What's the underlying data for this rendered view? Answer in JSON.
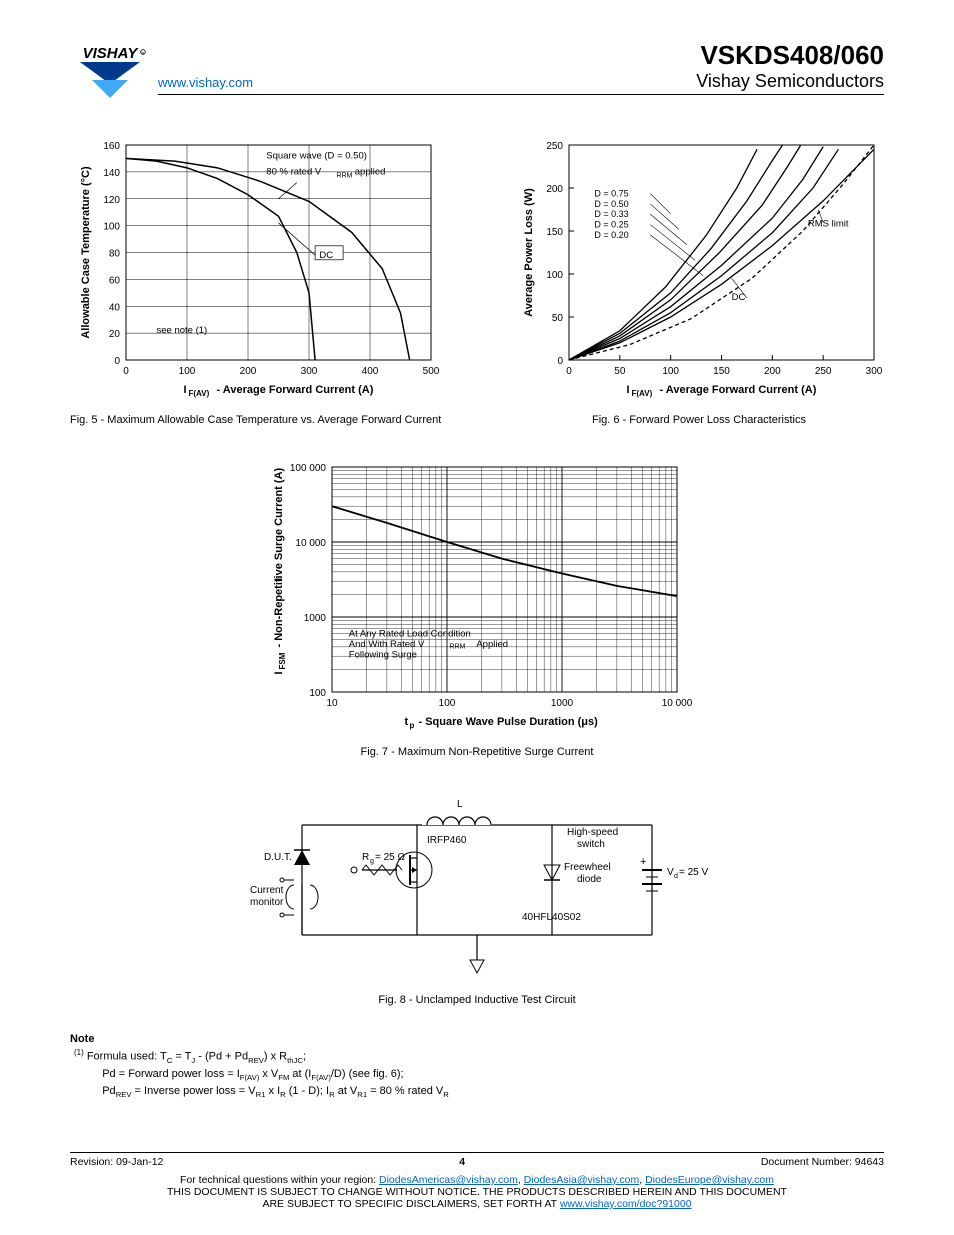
{
  "header": {
    "url": "www.vishay.com",
    "part_number": "VSKDS408/060",
    "subtitle": "Vishay Semiconductors",
    "logo_text": "VISHAY",
    "logo_color_top": "#003a8c",
    "logo_color_bottom": "#3fa9f5"
  },
  "fig5": {
    "type": "line",
    "caption": "Fig. 5 - Maximum Allowable Case Temperature vs. Average Forward Current",
    "ylabel": "Allowable Case Temperature (°C)",
    "xlabel": "I_F(AV) - Average Forward Current (A)",
    "xlim": [
      0,
      500
    ],
    "ylim": [
      0,
      160
    ],
    "xticks": [
      0,
      100,
      200,
      300,
      400,
      500
    ],
    "yticks": [
      0,
      20,
      40,
      60,
      80,
      100,
      120,
      140,
      160
    ],
    "background_color": "#ffffff",
    "grid_color": "#000000",
    "line_color": "#000000",
    "annotations": {
      "square_wave": "Square wave (D = 0.50)",
      "vrrm": "80 % rated V_RRM applied",
      "dc": "DC",
      "note": "see note (1)"
    },
    "curves": [
      {
        "name": "DC",
        "points": [
          [
            0,
            150
          ],
          [
            50,
            148
          ],
          [
            100,
            143
          ],
          [
            150,
            135
          ],
          [
            200,
            123
          ],
          [
            250,
            107
          ],
          [
            280,
            80
          ],
          [
            300,
            50
          ],
          [
            310,
            0
          ]
        ]
      },
      {
        "name": "D050",
        "points": [
          [
            0,
            150
          ],
          [
            80,
            148
          ],
          [
            150,
            143
          ],
          [
            220,
            133
          ],
          [
            300,
            118
          ],
          [
            370,
            95
          ],
          [
            420,
            68
          ],
          [
            450,
            35
          ],
          [
            465,
            0
          ]
        ]
      }
    ]
  },
  "fig6": {
    "type": "line",
    "caption": "Fig. 6 - Forward Power Loss Characteristics",
    "ylabel": "Average Power Loss (W)",
    "xlabel": "I_F(AV) - Average Forward Current (A)",
    "xlim": [
      0,
      300
    ],
    "ylim": [
      0,
      250
    ],
    "xticks": [
      0,
      50,
      100,
      150,
      200,
      250,
      300
    ],
    "yticks": [
      0,
      50,
      100,
      150,
      200,
      250
    ],
    "background_color": "#ffffff",
    "grid_color": "#000000",
    "line_color": "#000000",
    "legend_labels": [
      "D = 0.75",
      "D = 0.50",
      "D = 0.33",
      "D = 0.25",
      "D = 0.20"
    ],
    "dc_label": "DC",
    "rms_label": "RMS limit",
    "curves": [
      {
        "name": "DC",
        "points": [
          [
            0,
            0
          ],
          [
            50,
            20
          ],
          [
            100,
            50
          ],
          [
            150,
            88
          ],
          [
            200,
            133
          ],
          [
            250,
            185
          ],
          [
            300,
            245
          ]
        ]
      },
      {
        "name": "D075",
        "points": [
          [
            0,
            0
          ],
          [
            50,
            22
          ],
          [
            100,
            55
          ],
          [
            150,
            98
          ],
          [
            200,
            148
          ],
          [
            240,
            200
          ],
          [
            265,
            245
          ]
        ]
      },
      {
        "name": "D050",
        "points": [
          [
            0,
            0
          ],
          [
            50,
            25
          ],
          [
            100,
            62
          ],
          [
            150,
            110
          ],
          [
            200,
            165
          ],
          [
            230,
            210
          ],
          [
            250,
            248
          ]
        ]
      },
      {
        "name": "D033",
        "points": [
          [
            0,
            0
          ],
          [
            50,
            28
          ],
          [
            100,
            70
          ],
          [
            148,
            125
          ],
          [
            190,
            180
          ],
          [
            215,
            225
          ],
          [
            228,
            250
          ]
        ]
      },
      {
        "name": "D025",
        "points": [
          [
            0,
            0
          ],
          [
            50,
            31
          ],
          [
            100,
            78
          ],
          [
            140,
            130
          ],
          [
            175,
            185
          ],
          [
            200,
            232
          ],
          [
            210,
            250
          ]
        ]
      },
      {
        "name": "D020",
        "points": [
          [
            0,
            0
          ],
          [
            50,
            34
          ],
          [
            95,
            85
          ],
          [
            135,
            145
          ],
          [
            165,
            200
          ],
          [
            185,
            245
          ]
        ]
      },
      {
        "name": "RMS",
        "dash": true,
        "points": [
          [
            0,
            0
          ],
          [
            60,
            18
          ],
          [
            120,
            48
          ],
          [
            180,
            95
          ],
          [
            230,
            150
          ],
          [
            270,
            205
          ],
          [
            300,
            250
          ]
        ]
      }
    ]
  },
  "fig7": {
    "type": "loglog",
    "caption": "Fig. 7 - Maximum Non-Repetitive Surge Current",
    "ylabel": "I_FSM - Non-Repetitive Surge Current (A)",
    "xlabel": "t_p - Square Wave Pulse Duration (μs)",
    "xlim": [
      10,
      10000
    ],
    "ylim": [
      100,
      100000
    ],
    "xticks": [
      "10",
      "100",
      "1000",
      "10 000"
    ],
    "yticks": [
      "100",
      "1000",
      "10 000",
      "100 000"
    ],
    "line_color": "#000000",
    "annotation": "At Any Rated Load Condition And With Rated V_RRM Applied Following Surge",
    "curve": [
      [
        10,
        30000
      ],
      [
        30,
        18000
      ],
      [
        100,
        10000
      ],
      [
        300,
        6000
      ],
      [
        1000,
        3800
      ],
      [
        3000,
        2600
      ],
      [
        10000,
        1900
      ]
    ]
  },
  "fig8": {
    "type": "circuit",
    "caption": "Fig. 8 - Unclamped Inductive Test Circuit",
    "labels": {
      "L": "L",
      "dut": "D.U.T.",
      "rg": "R_g = 25 Ω",
      "irfp": "IRFP460",
      "hs_switch": "High-speed switch",
      "freewheel": "Freewheel diode",
      "hfl": "40HFL40S02",
      "vd": "V_d = 25 V",
      "current_monitor": "Current monitor"
    },
    "line_color": "#000000"
  },
  "note": {
    "title": "Note",
    "text": "Formula used: T_C = T_J - (Pd + Pd_REV) x R_thJC; Pd = Forward power loss = I_F(AV) x V_FM at (I_F(AV)/D) (see fig. 6); Pd_REV = Inverse power loss = V_R1 x I_R (1 - D); I_R at V_R1 = 80 % rated V_R",
    "marker": "(1)"
  },
  "footer": {
    "revision": "Revision: 09-Jan-12",
    "page": "4",
    "docnum": "Document Number: 94643",
    "tech_line": "For technical questions within your region: ",
    "emails": [
      "DiodesAmericas@vishay.com",
      "DiodesAsia@vishay.com",
      "DiodesEurope@vishay.com"
    ],
    "disclaimer1": "THIS DOCUMENT IS SUBJECT TO CHANGE WITHOUT NOTICE. THE PRODUCTS DESCRIBED HEREIN AND THIS DOCUMENT",
    "disclaimer2": "ARE SUBJECT TO SPECIFIC DISCLAIMERS, SET FORTH AT ",
    "disclaimer_url": "www.vishay.com/doc?91000"
  }
}
